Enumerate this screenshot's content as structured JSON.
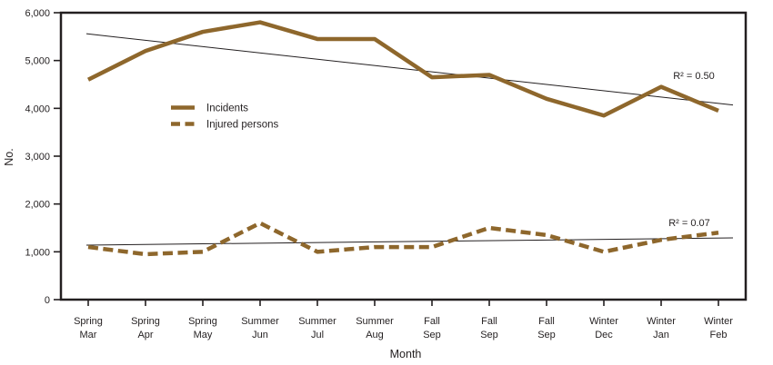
{
  "figure": {
    "ink_color": "#231F20",
    "line_color": "#8E672C",
    "background": "#FFFFFF"
  },
  "chart_data": {
    "type": "line",
    "title": "",
    "xlabel": "Month",
    "ylabel": "No.",
    "ylim": [
      0,
      6000
    ],
    "ytick_step": 1000,
    "ytick_labels": [
      "0",
      "1,000",
      "2,000",
      "3,000",
      "4,000",
      "5,000",
      "6,000"
    ],
    "grid": "off",
    "legend_position": "upper-left-inside",
    "categories": [
      {
        "season": "Spring",
        "month": "Mar"
      },
      {
        "season": "Spring",
        "month": "Apr"
      },
      {
        "season": "Spring",
        "month": "May"
      },
      {
        "season": "Summer",
        "month": "Jun"
      },
      {
        "season": "Summer",
        "month": "Jul"
      },
      {
        "season": "Summer",
        "month": "Aug"
      },
      {
        "season": "Fall",
        "month": "Sep"
      },
      {
        "season": "Fall",
        "month": "Sep"
      },
      {
        "season": "Fall",
        "month": "Sep"
      },
      {
        "season": "Winter",
        "month": "Dec"
      },
      {
        "season": "Winter",
        "month": "Jan"
      },
      {
        "season": "Winter",
        "month": "Feb"
      }
    ],
    "series": [
      {
        "name": "Incidents",
        "line_style": "solid",
        "color": "#8E672C",
        "values": [
          4600,
          5200,
          5600,
          5800,
          5450,
          5450,
          4650,
          4700,
          4200,
          3850,
          4450,
          3950
        ]
      },
      {
        "name": "Injured persons",
        "line_style": "dashed",
        "color": "#8E672C",
        "values": [
          1100,
          950,
          1000,
          1600,
          1000,
          1100,
          1100,
          1500,
          1350,
          1000,
          1250,
          1400
        ]
      }
    ],
    "trendlines": [
      {
        "for": "Incidents",
        "start_value": 5560,
        "end_value": 4070,
        "label": "R² = 0.50"
      },
      {
        "for": "Injured persons",
        "start_value": 1140,
        "end_value": 1290,
        "label": "R² = 0.07"
      }
    ]
  }
}
